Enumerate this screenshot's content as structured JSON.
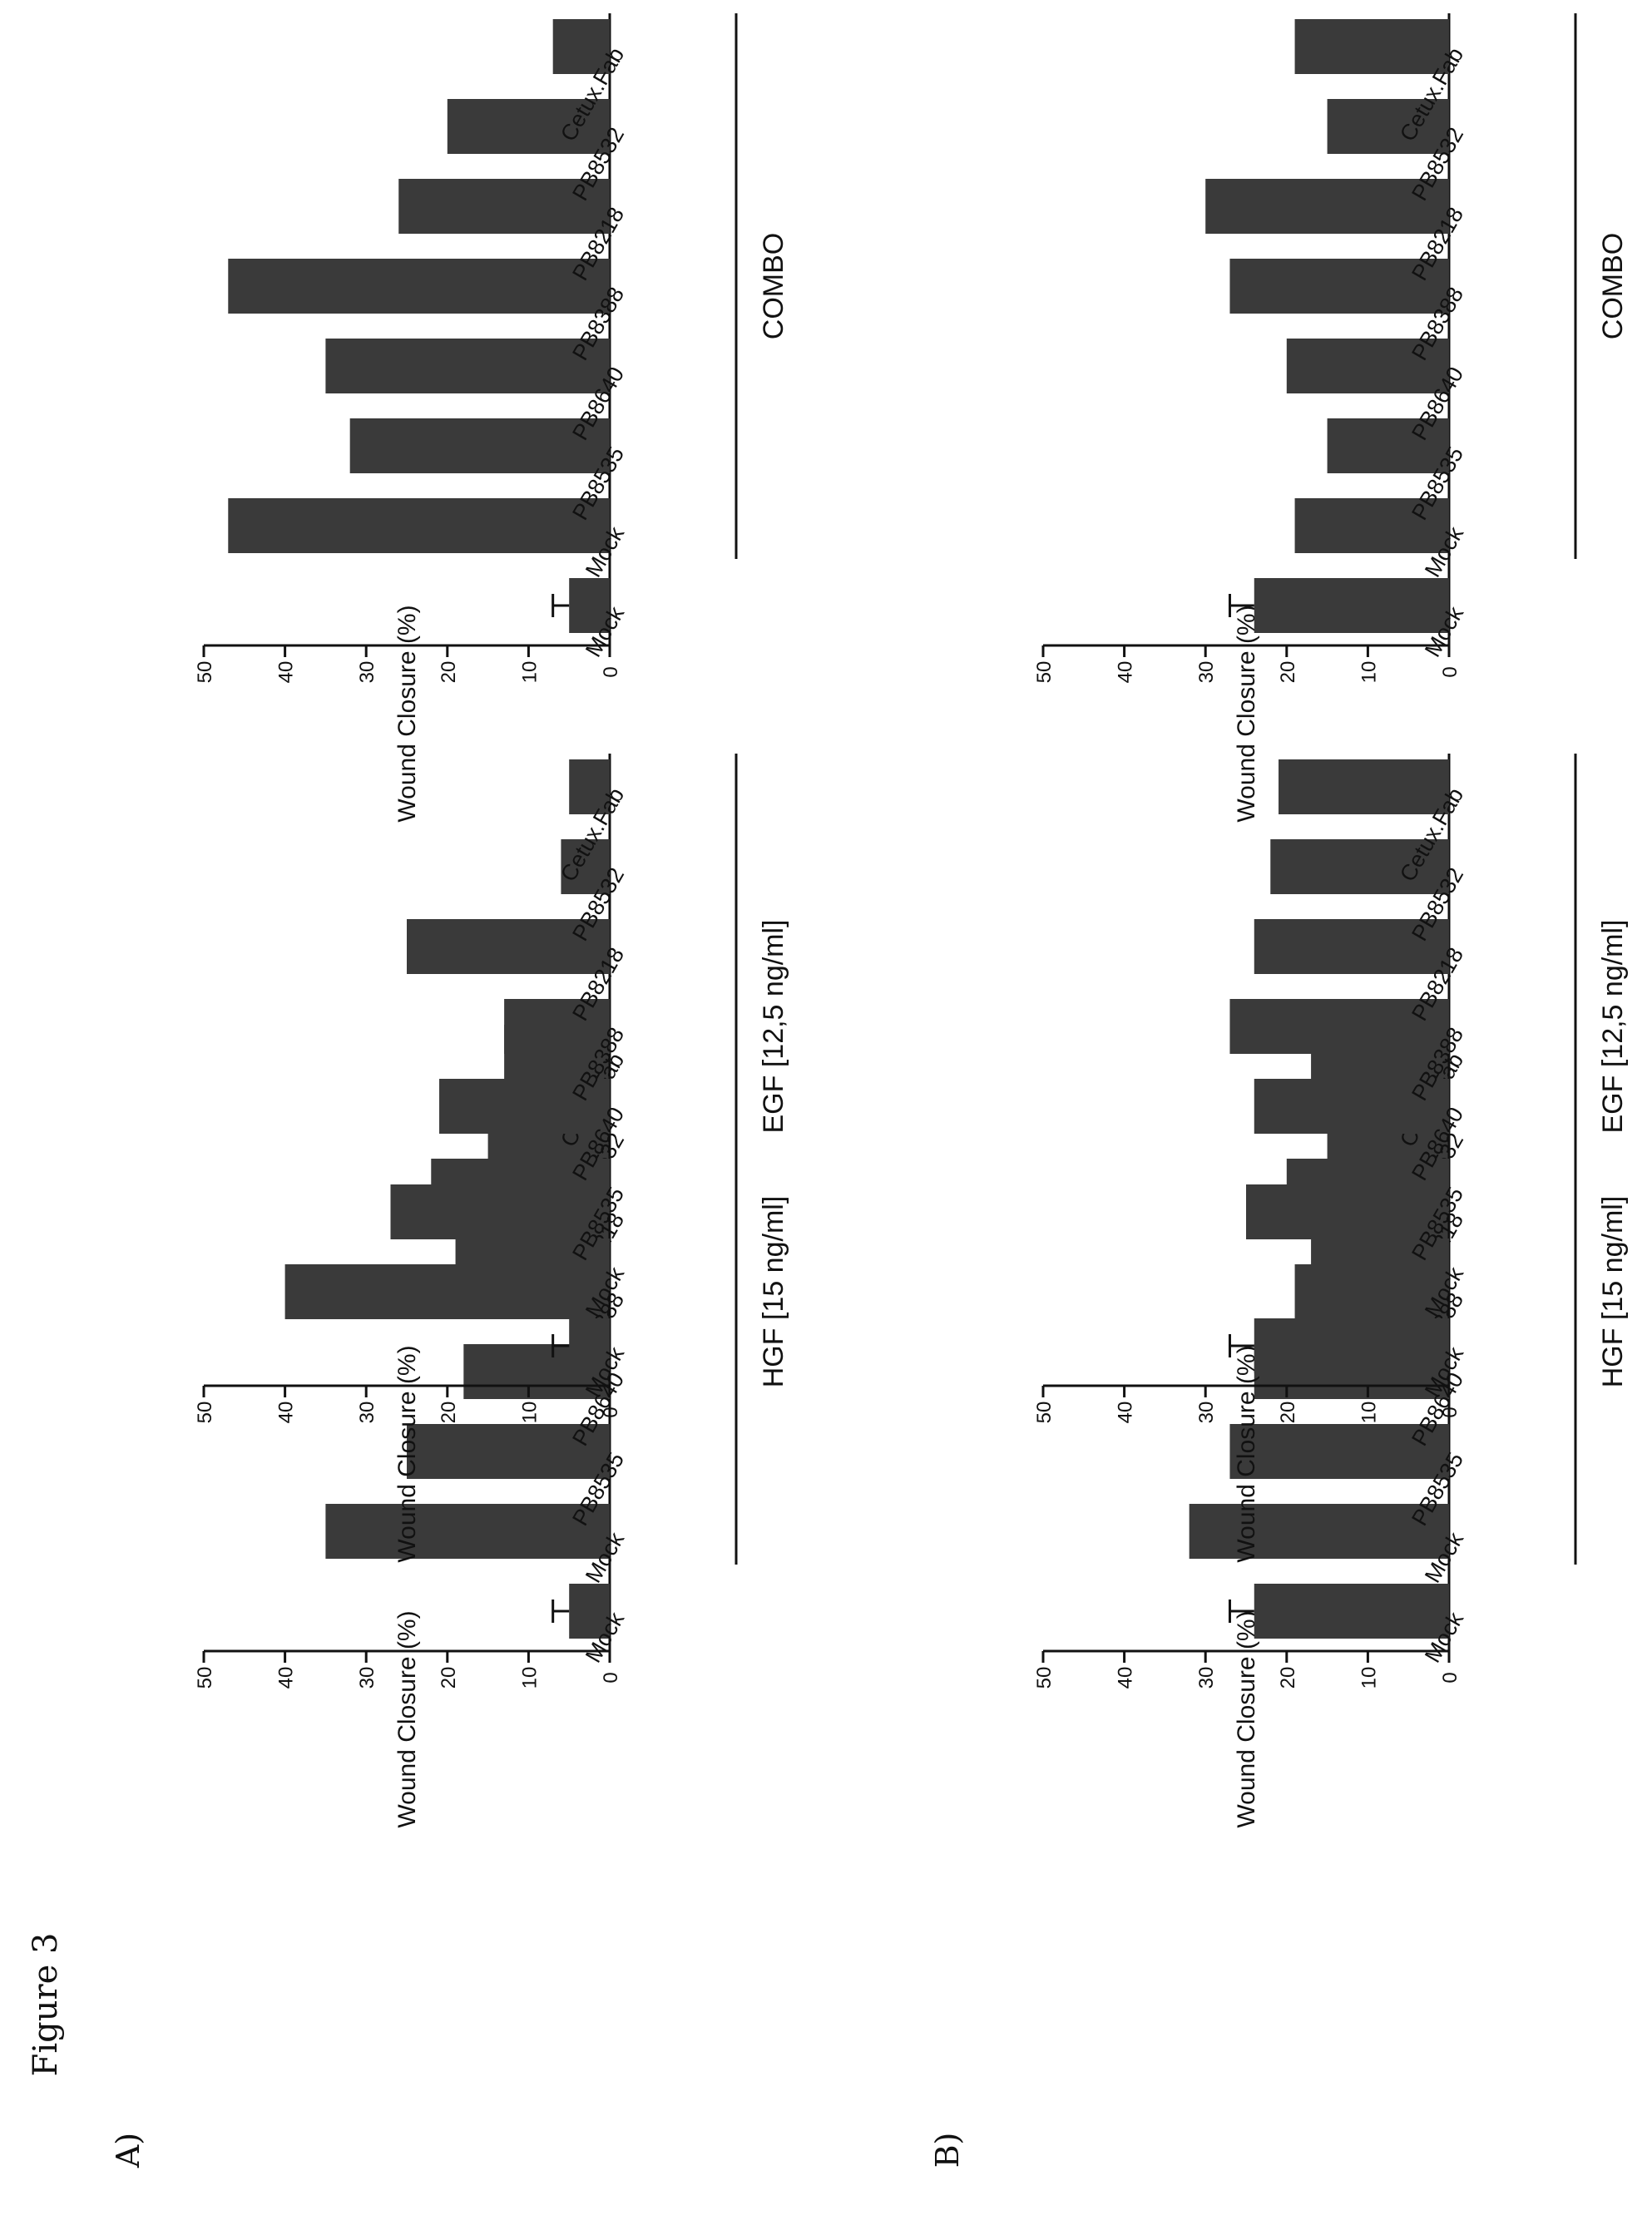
{
  "figure_label": "Figure 3",
  "panel_labels": [
    "A)",
    "B)"
  ],
  "colors": {
    "bar": "#3a3a3a",
    "axis": "#111111",
    "text": "#111111"
  },
  "chart_data": [
    {
      "type": "bar",
      "panel": "A)",
      "group_label": "HGF [15 ng/ml]",
      "ylabel": "Wound Closure (%)",
      "xlabel": "",
      "ylim": [
        0,
        50
      ],
      "yticks": [
        0,
        10,
        20,
        30,
        40,
        50
      ],
      "categories": [
        "Mock",
        "Mock",
        "PB8535",
        "PB8640",
        "PB8388",
        "PB8218",
        "PB8532",
        "Cetux.Fab"
      ],
      "values": [
        5,
        35,
        25,
        18,
        40,
        27,
        15,
        13
      ],
      "error": [
        2,
        null,
        null,
        null,
        null,
        null,
        null,
        null
      ]
    },
    {
      "type": "bar",
      "panel": "A)",
      "group_label": "EGF [12,5 ng/ml]",
      "ylabel": "Wound Closure (%)",
      "xlabel": "",
      "ylim": [
        0,
        50
      ],
      "yticks": [
        0,
        10,
        20,
        30,
        40,
        50
      ],
      "categories": [
        "Mock",
        "Mock",
        "PB8535",
        "PB8640",
        "PB8388",
        "PB8218",
        "PB8532",
        "Cetux.Fab"
      ],
      "values": [
        5,
        19,
        22,
        21,
        13,
        25,
        6,
        5
      ],
      "error": [
        2,
        null,
        null,
        null,
        null,
        null,
        null,
        null
      ]
    },
    {
      "type": "bar",
      "panel": "A)",
      "group_label": "COMBO",
      "ylabel": "Wound Closure (%)",
      "xlabel": "",
      "ylim": [
        0,
        50
      ],
      "yticks": [
        0,
        10,
        20,
        30,
        40,
        50
      ],
      "categories": [
        "Mock",
        "Mock",
        "PB8535",
        "PB8640",
        "PB8388",
        "PB8218",
        "PB8532",
        "Cetux.Fab"
      ],
      "values": [
        5,
        47,
        32,
        35,
        47,
        26,
        20,
        7
      ],
      "error": [
        2,
        null,
        null,
        null,
        null,
        null,
        null,
        null
      ]
    },
    {
      "type": "bar",
      "panel": "B)",
      "group_label": "HGF [15 ng/ml]",
      "ylabel": "Wound Closure (%)",
      "xlabel": "",
      "ylim": [
        0,
        50
      ],
      "yticks": [
        0,
        10,
        20,
        30,
        40,
        50
      ],
      "categories": [
        "Mock",
        "Mock",
        "PB8535",
        "PB8640",
        "PB8388",
        "PB8218",
        "PB8532",
        "Cetux.Fab"
      ],
      "values": [
        24,
        32,
        27,
        24,
        19,
        25,
        15,
        17
      ],
      "error": [
        3,
        null,
        null,
        null,
        null,
        null,
        null,
        null
      ]
    },
    {
      "type": "bar",
      "panel": "B)",
      "group_label": "EGF [12,5 ng/ml]",
      "ylabel": "Wound Closure (%)",
      "xlabel": "",
      "ylim": [
        0,
        50
      ],
      "yticks": [
        0,
        10,
        20,
        30,
        40,
        50
      ],
      "categories": [
        "Mock",
        "Mock",
        "PB8535",
        "PB8640",
        "PB8388",
        "PB8218",
        "PB8532",
        "Cetux.Fab"
      ],
      "values": [
        24,
        17,
        20,
        24,
        27,
        24,
        22,
        21
      ],
      "error": [
        3,
        null,
        null,
        null,
        null,
        null,
        null,
        null
      ]
    },
    {
      "type": "bar",
      "panel": "B)",
      "group_label": "COMBO",
      "ylabel": "Wound Closure (%)",
      "xlabel": "",
      "ylim": [
        0,
        50
      ],
      "yticks": [
        0,
        10,
        20,
        30,
        40,
        50
      ],
      "categories": [
        "Mock",
        "Mock",
        "PB8535",
        "PB8640",
        "PB8388",
        "PB8218",
        "PB8532",
        "Cetux.Fab"
      ],
      "values": [
        24,
        19,
        15,
        20,
        27,
        30,
        15,
        19
      ],
      "error": [
        3,
        null,
        null,
        null,
        null,
        null,
        null,
        null
      ]
    }
  ]
}
